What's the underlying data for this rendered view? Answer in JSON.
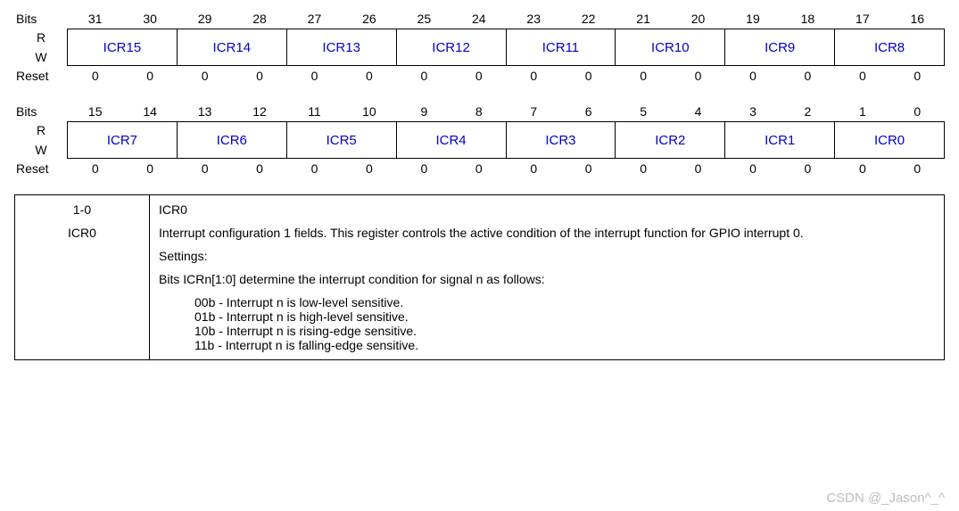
{
  "colors": {
    "field_text": "#0000cc",
    "border": "#000000",
    "bg": "#ffffff",
    "watermark": "#bdbdbd"
  },
  "labels": {
    "bits": "Bits",
    "r": "R",
    "w": "W",
    "reset": "Reset"
  },
  "upper": {
    "bit_numbers": [
      "31",
      "30",
      "29",
      "28",
      "27",
      "26",
      "25",
      "24",
      "23",
      "22",
      "21",
      "20",
      "19",
      "18",
      "17",
      "16"
    ],
    "fields": [
      "ICR15",
      "ICR14",
      "ICR13",
      "ICR12",
      "ICR11",
      "ICR10",
      "ICR9",
      "ICR8"
    ],
    "reset": [
      "0",
      "0",
      "0",
      "0",
      "0",
      "0",
      "0",
      "0",
      "0",
      "0",
      "0",
      "0",
      "0",
      "0",
      "0",
      "0"
    ]
  },
  "lower": {
    "bit_numbers": [
      "15",
      "14",
      "13",
      "12",
      "11",
      "10",
      "9",
      "8",
      "7",
      "6",
      "5",
      "4",
      "3",
      "2",
      "1",
      "0"
    ],
    "fields": [
      "ICR7",
      "ICR6",
      "ICR5",
      "ICR4",
      "ICR3",
      "ICR2",
      "ICR1",
      "ICR0"
    ],
    "reset": [
      "0",
      "0",
      "0",
      "0",
      "0",
      "0",
      "0",
      "0",
      "0",
      "0",
      "0",
      "0",
      "0",
      "0",
      "0",
      "0"
    ]
  },
  "desc": {
    "bits": "1-0",
    "name": "ICR0",
    "title": "ICR0",
    "para": "Interrupt configuration 1 fields. This register controls the active condition of the interrupt function for GPIO interrupt 0.",
    "settings_label": "Settings:",
    "condition_line": "Bits ICRn[1:0] determine the interrupt condition for signal n as follows:",
    "options": [
      "00b - Interrupt n is low-level sensitive.",
      "01b - Interrupt n is high-level sensitive.",
      "10b - Interrupt n is rising-edge sensitive.",
      "11b - Interrupt n is falling-edge sensitive."
    ]
  },
  "watermark": "CSDN @_Jason^_^"
}
